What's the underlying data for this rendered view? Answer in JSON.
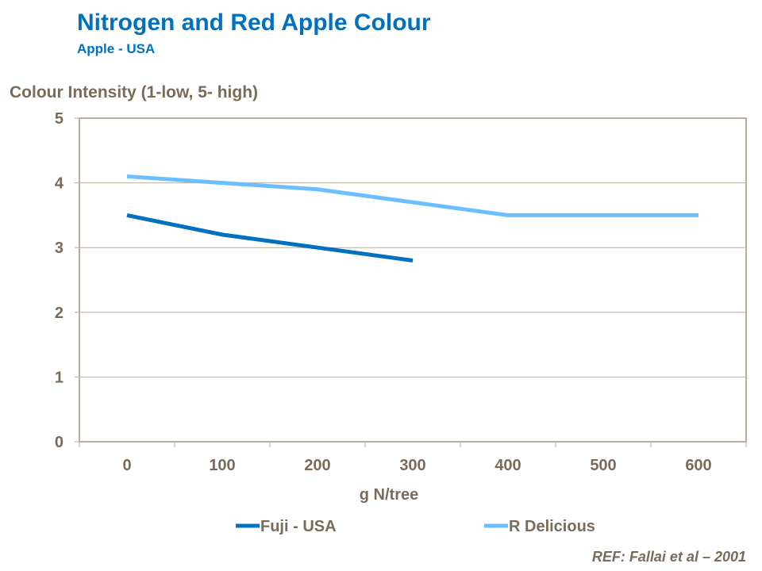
{
  "chart_data": {
    "type": "line",
    "title": "Nitrogen and Red Apple Colour",
    "subtitle": "Apple - USA",
    "ylabel": "Colour Intensity (1-low, 5- high)",
    "xlabel": "g N/tree",
    "categories": [
      "0",
      "100",
      "200",
      "300",
      "400",
      "500",
      "600"
    ],
    "ylim": [
      0,
      5
    ],
    "yticks": [
      "0",
      "1",
      "2",
      "3",
      "4",
      "5"
    ],
    "grid": true,
    "legend_position": "bottom",
    "series": [
      {
        "name": "Fuji - USA",
        "color": "#0070c0",
        "values": [
          3.5,
          3.2,
          3.0,
          2.8,
          null,
          null,
          null
        ]
      },
      {
        "name": "R Delicious",
        "color": "#6cbfff",
        "values": [
          4.1,
          4.0,
          3.9,
          3.7,
          3.5,
          3.5,
          3.5
        ]
      }
    ],
    "annotation": "REF: Fallai et al – 2001"
  }
}
